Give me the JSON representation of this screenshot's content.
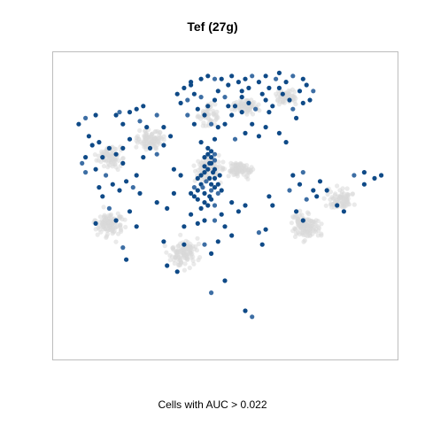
{
  "chart_data": {
    "type": "scatter",
    "title": "Tef (27g)",
    "xlabel": "Cells with AUC > 0.022",
    "ylabel": "",
    "grid": false,
    "legend": "none",
    "colors": {
      "background_cells": "#d9d9d9",
      "high_auc": "#0f4a87",
      "mid_auc": "#3d6ea4",
      "frame": "#bdbdbd"
    },
    "series": [
      {
        "clusters": [
          [
            0.45,
            0.38,
            0.09,
            0.08,
            120
          ],
          [
            0.74,
            0.57,
            0.09,
            0.09,
            120
          ],
          [
            0.38,
            0.66,
            0.08,
            0.09,
            110
          ],
          [
            0.16,
            0.56,
            0.09,
            0.08,
            110
          ],
          [
            0.28,
            0.28,
            0.08,
            0.06,
            90
          ],
          [
            0.54,
            0.38,
            0.08,
            0.06,
            80
          ],
          [
            0.56,
            0.17,
            0.08,
            0.05,
            80
          ],
          [
            0.84,
            0.48,
            0.08,
            0.08,
            80
          ],
          [
            0.16,
            0.34,
            0.07,
            0.07,
            80
          ],
          [
            0.68,
            0.14,
            0.07,
            0.06,
            60
          ],
          [
            0.45,
            0.2,
            0.06,
            0.08,
            50
          ]
        ]
      },
      {
        "points": [
          [
            0.455,
            0.36
          ],
          [
            0.46,
            0.34
          ],
          [
            0.45,
            0.38
          ],
          [
            0.47,
            0.35
          ],
          [
            0.44,
            0.37
          ],
          [
            0.465,
            0.39
          ],
          [
            0.455,
            0.41
          ],
          [
            0.46,
            0.43
          ],
          [
            0.445,
            0.42
          ],
          [
            0.47,
            0.44
          ],
          [
            0.43,
            0.43
          ],
          [
            0.42,
            0.45
          ],
          [
            0.44,
            0.46
          ],
          [
            0.46,
            0.45
          ],
          [
            0.47,
            0.41
          ],
          [
            0.45,
            0.33
          ],
          [
            0.46,
            0.32
          ],
          [
            0.43,
            0.4
          ],
          [
            0.41,
            0.44
          ],
          [
            0.4,
            0.46
          ],
          [
            0.42,
            0.48
          ],
          [
            0.44,
            0.49
          ],
          [
            0.46,
            0.48
          ],
          [
            0.48,
            0.46
          ],
          [
            0.48,
            0.43
          ],
          [
            0.47,
            0.38
          ],
          [
            0.44,
            0.34
          ],
          [
            0.45,
            0.31
          ],
          [
            0.47,
            0.33
          ],
          [
            0.42,
            0.41
          ],
          [
            0.41,
            0.47
          ],
          [
            0.43,
            0.51
          ],
          [
            0.45,
            0.5
          ],
          [
            0.47,
            0.5
          ],
          [
            0.49,
            0.45
          ],
          [
            0.485,
            0.4
          ],
          [
            0.46,
            0.36
          ],
          [
            0.44,
            0.39
          ],
          [
            0.435,
            0.44
          ],
          [
            0.455,
            0.47
          ],
          [
            0.36,
            0.13
          ],
          [
            0.38,
            0.11
          ],
          [
            0.4,
            0.1
          ],
          [
            0.39,
            0.15
          ],
          [
            0.37,
            0.16
          ],
          [
            0.41,
            0.13
          ],
          [
            0.43,
            0.08
          ],
          [
            0.45,
            0.07
          ],
          [
            0.47,
            0.08
          ],
          [
            0.48,
            0.12
          ],
          [
            0.47,
            0.15
          ],
          [
            0.49,
            0.08
          ],
          [
            0.51,
            0.1
          ],
          [
            0.5,
            0.14
          ],
          [
            0.52,
            0.07
          ],
          [
            0.54,
            0.09
          ],
          [
            0.55,
            0.12
          ],
          [
            0.56,
            0.08
          ],
          [
            0.58,
            0.07
          ],
          [
            0.6,
            0.09
          ],
          [
            0.62,
            0.07
          ],
          [
            0.63,
            0.11
          ],
          [
            0.61,
            0.13
          ],
          [
            0.65,
            0.08
          ],
          [
            0.66,
            0.11
          ],
          [
            0.68,
            0.09
          ],
          [
            0.67,
            0.13
          ],
          [
            0.69,
            0.15
          ],
          [
            0.7,
            0.18
          ],
          [
            0.71,
            0.21
          ],
          [
            0.73,
            0.16
          ],
          [
            0.72,
            0.12
          ],
          [
            0.74,
            0.1
          ],
          [
            0.76,
            0.12
          ],
          [
            0.75,
            0.15
          ],
          [
            0.53,
            0.17
          ],
          [
            0.55,
            0.19
          ],
          [
            0.57,
            0.16
          ],
          [
            0.59,
            0.18
          ],
          [
            0.62,
            0.15
          ],
          [
            0.64,
            0.17
          ],
          [
            0.42,
            0.18
          ],
          [
            0.44,
            0.2
          ],
          [
            0.46,
            0.23
          ],
          [
            0.48,
            0.24
          ],
          [
            0.5,
            0.23
          ],
          [
            0.52,
            0.2
          ],
          [
            0.4,
            0.09
          ],
          [
            0.43,
            0.14
          ],
          [
            0.45,
            0.17
          ],
          [
            0.57,
            0.11
          ],
          [
            0.63,
            0.19
          ],
          [
            0.66,
            0.06
          ],
          [
            0.7,
            0.07
          ],
          [
            0.73,
            0.08
          ],
          [
            0.1,
            0.27
          ],
          [
            0.11,
            0.3
          ],
          [
            0.09,
            0.34
          ],
          [
            0.08,
            0.36
          ],
          [
            0.12,
            0.38
          ],
          [
            0.14,
            0.34
          ],
          [
            0.13,
            0.29
          ],
          [
            0.18,
            0.2
          ],
          [
            0.19,
            0.19
          ],
          [
            0.2,
            0.23
          ],
          [
            0.22,
            0.19
          ],
          [
            0.24,
            0.18
          ],
          [
            0.26,
            0.17
          ],
          [
            0.25,
            0.22
          ],
          [
            0.27,
            0.24
          ],
          [
            0.16,
            0.31
          ],
          [
            0.18,
            0.33
          ],
          [
            0.2,
            0.36
          ],
          [
            0.15,
            0.4
          ],
          [
            0.17,
            0.43
          ],
          [
            0.13,
            0.44
          ],
          [
            0.19,
            0.45
          ],
          [
            0.21,
            0.42
          ],
          [
            0.23,
            0.44
          ],
          [
            0.25,
            0.46
          ],
          [
            0.24,
            0.4
          ],
          [
            0.26,
            0.34
          ],
          [
            0.28,
            0.31
          ],
          [
            0.3,
            0.33
          ],
          [
            0.32,
            0.3
          ],
          [
            0.22,
            0.28
          ],
          [
            0.2,
            0.31
          ],
          [
            0.14,
            0.47
          ],
          [
            0.16,
            0.51
          ],
          [
            0.18,
            0.55
          ],
          [
            0.22,
            0.52
          ],
          [
            0.24,
            0.57
          ],
          [
            0.12,
            0.56
          ],
          [
            0.2,
            0.64
          ],
          [
            0.21,
            0.68
          ],
          [
            0.3,
            0.49
          ],
          [
            0.33,
            0.51
          ],
          [
            0.35,
            0.46
          ],
          [
            0.09,
            0.39
          ],
          [
            0.38,
            0.57
          ],
          [
            0.4,
            0.53
          ],
          [
            0.42,
            0.56
          ],
          [
            0.44,
            0.55
          ],
          [
            0.47,
            0.55
          ],
          [
            0.49,
            0.53
          ],
          [
            0.5,
            0.57
          ],
          [
            0.52,
            0.6
          ],
          [
            0.48,
            0.62
          ],
          [
            0.44,
            0.63
          ],
          [
            0.46,
            0.66
          ],
          [
            0.52,
            0.49
          ],
          [
            0.54,
            0.52
          ],
          [
            0.56,
            0.5
          ],
          [
            0.6,
            0.59
          ],
          [
            0.62,
            0.58
          ],
          [
            0.61,
            0.63
          ],
          [
            0.64,
            0.5
          ],
          [
            0.63,
            0.47
          ],
          [
            0.74,
            0.48
          ],
          [
            0.76,
            0.45
          ],
          [
            0.77,
            0.47
          ],
          [
            0.72,
            0.43
          ],
          [
            0.7,
            0.4
          ],
          [
            0.73,
            0.39
          ],
          [
            0.78,
            0.42
          ],
          [
            0.8,
            0.45
          ],
          [
            0.83,
            0.5
          ],
          [
            0.85,
            0.52
          ],
          [
            0.88,
            0.4
          ],
          [
            0.91,
            0.39
          ],
          [
            0.94,
            0.41
          ],
          [
            0.96,
            0.4
          ],
          [
            0.91,
            0.43
          ],
          [
            0.69,
            0.45
          ],
          [
            0.71,
            0.52
          ],
          [
            0.73,
            0.55
          ],
          [
            0.33,
            0.7
          ],
          [
            0.36,
            0.72
          ],
          [
            0.46,
            0.79
          ],
          [
            0.5,
            0.75
          ],
          [
            0.38,
            0.63
          ],
          [
            0.32,
            0.62
          ],
          [
            0.56,
            0.85
          ],
          [
            0.58,
            0.87
          ],
          [
            0.35,
            0.38
          ],
          [
            0.37,
            0.4
          ],
          [
            0.43,
            0.29
          ],
          [
            0.47,
            0.28
          ],
          [
            0.53,
            0.28
          ],
          [
            0.62,
            0.24
          ],
          [
            0.66,
            0.26
          ],
          [
            0.68,
            0.29
          ],
          [
            0.6,
            0.27
          ],
          [
            0.3,
            0.2
          ],
          [
            0.32,
            0.24
          ],
          [
            0.34,
            0.27
          ],
          [
            0.12,
            0.2
          ],
          [
            0.07,
            0.23
          ],
          [
            0.09,
            0.21
          ],
          [
            0.58,
            0.23
          ],
          [
            0.56,
            0.26
          ],
          [
            0.55,
            0.14
          ],
          [
            0.51,
            0.17
          ],
          [
            0.39,
            0.2
          ],
          [
            0.41,
            0.23
          ]
        ]
      }
    ],
    "xlim": [
      0,
      1
    ],
    "ylim": [
      0,
      1
    ]
  }
}
